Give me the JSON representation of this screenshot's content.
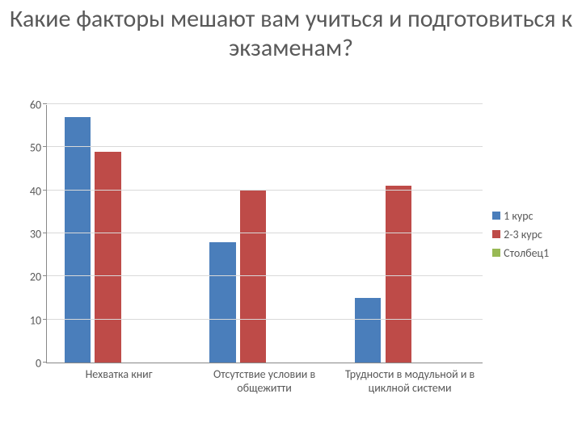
{
  "title": "Какие факторы мешают вам учиться и подготовиться к экзаменам?",
  "chart": {
    "type": "bar",
    "background_color": "#ffffff",
    "grid_color": "#d9d9d9",
    "axis_color": "#888888",
    "text_color": "#595959",
    "title_fontsize": 30,
    "label_fontsize": 14,
    "ylim": [
      0,
      60
    ],
    "ytick_step": 10,
    "yticks": [
      0,
      10,
      20,
      30,
      40,
      50,
      60
    ],
    "categories": [
      "Нехватка книг",
      "Отсутствие условии в общежитти",
      "Трудности в модульной и в циклной системи"
    ],
    "series": [
      {
        "name": "1 курс",
        "color": "#4a7ebb",
        "values": [
          57,
          28,
          15
        ]
      },
      {
        "name": "2-3 курс",
        "color": "#be4b48",
        "values": [
          49,
          40,
          41
        ]
      },
      {
        "name": "Столбец1",
        "color": "#98b954",
        "values": [
          null,
          null,
          null
        ]
      }
    ],
    "bar_width_pct": 18,
    "bar_gap_pct": 3,
    "group_left_offset_pct": 12
  }
}
